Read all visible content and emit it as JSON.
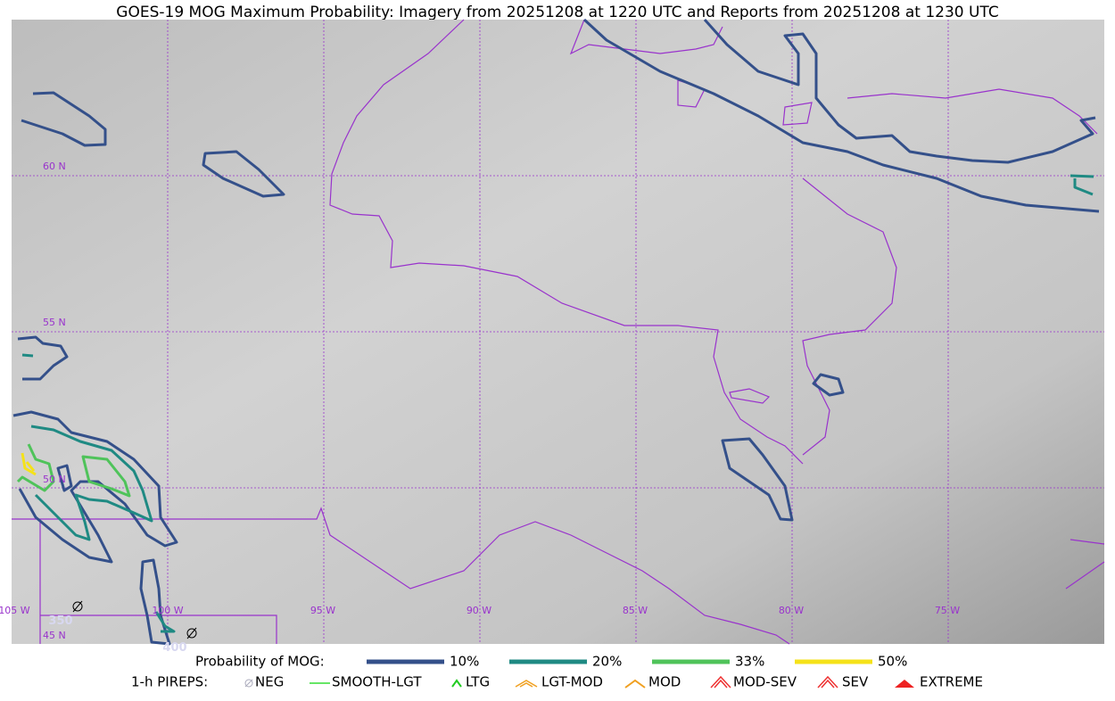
{
  "title": "GOES-19 MOG Maximum Probability: Imagery from 20251208 at 1220 UTC and Reports from 20251208 at 1230 UTC",
  "map": {
    "lat_labels": [
      "60 N",
      "55 N",
      "50 N",
      "45 N"
    ],
    "lon_labels": [
      "105 W",
      "100 W",
      "95 W",
      "90 W",
      "85 W",
      "80 W",
      "75 W"
    ],
    "pirep_reports": [
      "350",
      "400"
    ]
  },
  "legend": {
    "title": "Probability of MOG:",
    "levels": [
      {
        "label": "10%",
        "color": "#34508a"
      },
      {
        "label": "20%",
        "color": "#1f8a83"
      },
      {
        "label": "33%",
        "color": "#4fc35a"
      },
      {
        "label": "50%",
        "color": "#f5e21a"
      }
    ]
  },
  "pireps": {
    "title": "1-h PIREPS:",
    "items": [
      "NEG",
      "SMOOTH-LGT",
      "LTG",
      "LGT-MOD",
      "MOD",
      "MOD-SEV",
      "SEV",
      "EXTREME"
    ]
  }
}
